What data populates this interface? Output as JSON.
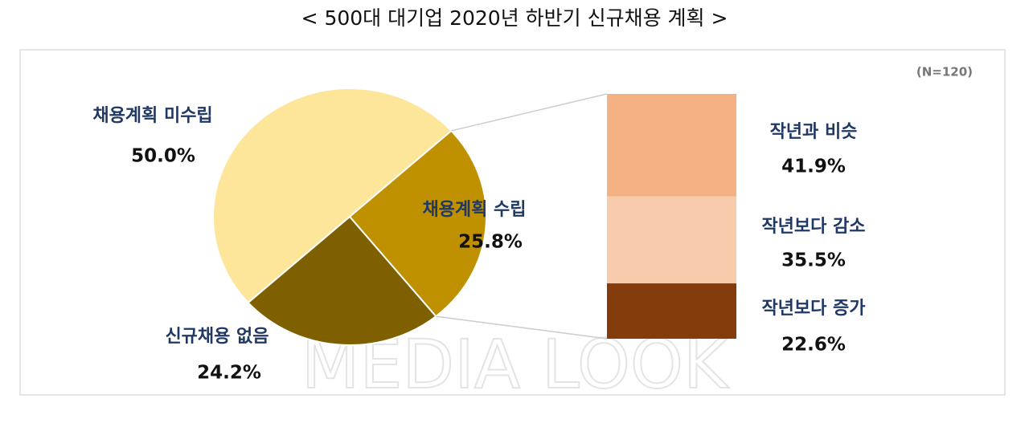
{
  "title": "< 500대 대기업 2020년 하반기 신규채용 계획 >",
  "note": "(N=120)",
  "watermark": "MEDIA LOOK",
  "chart_data": [
    {
      "type": "pie",
      "categories": [
        "채용계획 미수립",
        "채용계획 수립",
        "신규채용 없음"
      ],
      "values": [
        50.0,
        25.8,
        24.2
      ],
      "value_labels": [
        "50.0%",
        "25.8%",
        "24.2%"
      ],
      "colors": [
        "#fde59a",
        "#bf9000",
        "#7f6000"
      ]
    },
    {
      "type": "stacked-bar",
      "categories": [
        "작년과 비슷",
        "작년보다 감소",
        "작년보다 증가"
      ],
      "values": [
        41.9,
        35.5,
        22.6
      ],
      "value_labels": [
        "41.9%",
        "35.5%",
        "22.6%"
      ],
      "colors": [
        "#f4b183",
        "#f8cbad",
        "#843c0c"
      ]
    }
  ]
}
